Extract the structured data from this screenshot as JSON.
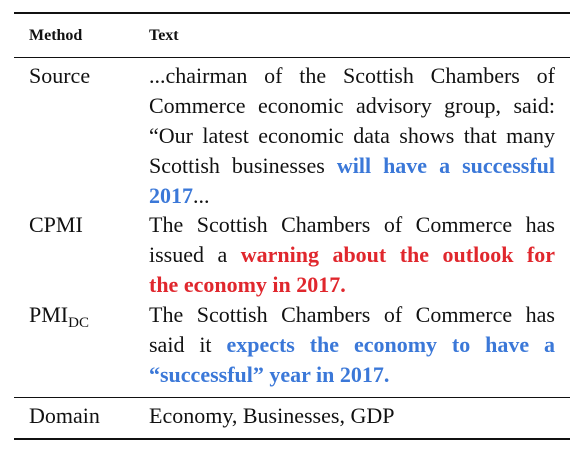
{
  "header": {
    "method_label": "Method",
    "text_label": "Text"
  },
  "rows": [
    {
      "method": "Source",
      "lines": [
        [
          "...chairman of the Scottish Chambers of"
        ],
        [
          "Commerce economic advisory group, said:"
        ],
        [
          "“Our latest economic data shows that many"
        ],
        [
          "Scottish businesses ",
          "will have a successful"
        ],
        [
          "2017",
          "..."
        ]
      ]
    },
    {
      "method": "CPMI",
      "lines": [
        [
          "The Scottish Chambers of Commerce has"
        ],
        [
          "issued a ",
          "warning about the outlook for"
        ],
        [
          "the economy in 2017."
        ]
      ]
    },
    {
      "method_main": "PMI",
      "method_sub": "DC",
      "lines": [
        [
          "The Scottish Chambers of Commerce has"
        ],
        [
          "said it ",
          "expects the economy to have a"
        ],
        [
          "“successful” year in 2017."
        ]
      ]
    },
    {
      "method": "Domain",
      "lines": [
        [
          "Economy, Businesses, GDP"
        ]
      ]
    }
  ],
  "colors": {
    "highlight_blue": "#3b78d8",
    "highlight_red": "#e0272d",
    "text": "#111111"
  }
}
